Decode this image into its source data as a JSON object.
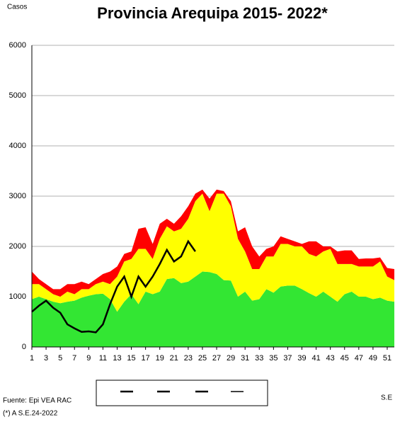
{
  "chart_data": {
    "type": "stacked_area_line",
    "title": "Provincia Arequipa  2015- 2022*",
    "y_label": "Casos",
    "x_label": "S.E",
    "source": "Fuente: Epi VEA RAC",
    "note": "(*) A S.E.24-2022",
    "x": [
      1,
      2,
      3,
      4,
      5,
      6,
      7,
      8,
      9,
      10,
      11,
      12,
      13,
      14,
      15,
      16,
      17,
      18,
      19,
      20,
      21,
      22,
      23,
      24,
      25,
      26,
      27,
      28,
      29,
      30,
      31,
      32,
      33,
      34,
      35,
      36,
      37,
      38,
      39,
      40,
      41,
      42,
      43,
      44,
      45,
      46,
      47,
      48,
      49,
      50,
      51,
      52
    ],
    "xlim": [
      1,
      52
    ],
    "xticks": [
      1,
      3,
      5,
      7,
      9,
      11,
      13,
      15,
      17,
      19,
      21,
      23,
      25,
      27,
      29,
      31,
      33,
      35,
      37,
      39,
      41,
      43,
      45,
      47,
      49,
      51
    ],
    "ylim": [
      0,
      6000
    ],
    "yticks": [
      0,
      1000,
      2000,
      3000,
      4000,
      5000,
      6000
    ],
    "grid": true,
    "areas": [
      {
        "color": "#33e633",
        "values": [
          950,
          1000,
          950,
          900,
          870,
          900,
          920,
          980,
          1020,
          1050,
          1060,
          950,
          700,
          900,
          1050,
          850,
          1100,
          1050,
          1100,
          1350,
          1370,
          1270,
          1300,
          1400,
          1500,
          1490,
          1450,
          1330,
          1320,
          1000,
          1100,
          920,
          950,
          1150,
          1080,
          1200,
          1220,
          1220,
          1150,
          1070,
          1000,
          1100,
          1000,
          900,
          1050,
          1100,
          1000,
          1000,
          950,
          980,
          920,
          900
        ]
      },
      {
        "color": "#ffff00",
        "values": [
          300,
          250,
          200,
          150,
          130,
          200,
          130,
          170,
          130,
          200,
          240,
          300,
          700,
          800,
          700,
          1100,
          850,
          700,
          1050,
          1050,
          930,
          1080,
          1250,
          1500,
          1550,
          1210,
          1600,
          1720,
          1480,
          1150,
          800,
          630,
          600,
          650,
          720,
          850,
          830,
          780,
          850,
          780,
          800,
          800,
          950,
          750,
          600,
          550,
          600,
          600,
          650,
          720,
          480,
          430
        ]
      },
      {
        "color": "#ff0000",
        "values": [
          250,
          100,
          100,
          100,
          150,
          150,
          200,
          150,
          100,
          100,
          150,
          250,
          200,
          150,
          150,
          400,
          430,
          300,
          300,
          150,
          150,
          250,
          250,
          150,
          80,
          250,
          80,
          50,
          100,
          150,
          480,
          450,
          250,
          150,
          200,
          150,
          100,
          100,
          50,
          250,
          300,
          100,
          50,
          250,
          270,
          270,
          150,
          160,
          160,
          80,
          170,
          220
        ]
      }
    ],
    "line": {
      "color": "#000000",
      "values": [
        700,
        820,
        920,
        780,
        680,
        450,
        370,
        300,
        310,
        290,
        450,
        850,
        1200,
        1400,
        1000,
        1400,
        1200,
        1400,
        1650,
        1930,
        1700,
        1800,
        2100,
        1900,
        null,
        null,
        null,
        null,
        null,
        null,
        null,
        null,
        null,
        null,
        null,
        null,
        null,
        null,
        null,
        null,
        null,
        null,
        null,
        null,
        null,
        null,
        null,
        null,
        null,
        null,
        null,
        null
      ]
    }
  }
}
